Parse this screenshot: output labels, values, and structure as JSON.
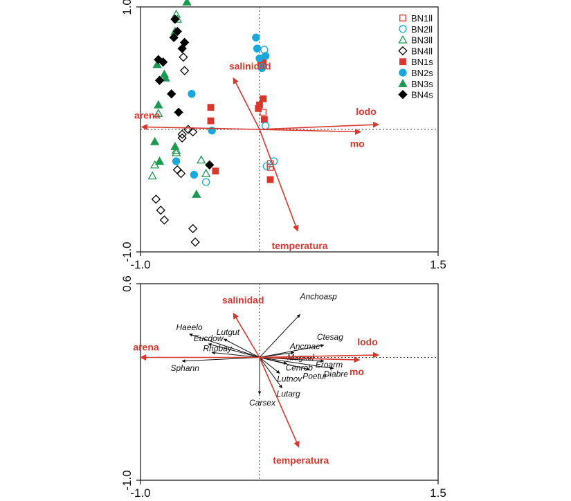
{
  "colors": {
    "red": "#d7372d",
    "cyan": "#1aa7d9",
    "green": "#1a9a50",
    "black": "#000000",
    "env_arrow": "#d7372d",
    "species_arrow": "#111111",
    "dashed": "#333333"
  },
  "chart_data": [
    {
      "type": "scatter",
      "title": "",
      "xlabel": "",
      "ylabel": "",
      "xlim": [
        -1.0,
        1.5
      ],
      "ylim": [
        -1.0,
        1.0
      ],
      "x_ticks": [
        {
          "value": -1.0,
          "label": "-1.0"
        },
        {
          "value": 1.5,
          "label": "1.5"
        }
      ],
      "y_ticks": [
        {
          "value": 1.0,
          "label": "1.0"
        },
        {
          "value": -1.0,
          "label": "-1.0"
        }
      ],
      "grid": false,
      "origin_lines": "dotted",
      "legend_position": "top-right",
      "legend": [
        {
          "name": "BN1ll",
          "marker": "square-open",
          "color": "red"
        },
        {
          "name": "BN2ll",
          "marker": "circle-open",
          "color": "cyan"
        },
        {
          "name": "BN3ll",
          "marker": "triangle-open",
          "color": "green"
        },
        {
          "name": "BN4ll",
          "marker": "diamond-open",
          "color": "black"
        },
        {
          "name": "BN1s",
          "marker": "square-filled",
          "color": "red"
        },
        {
          "name": "BN2s",
          "marker": "circle-filled",
          "color": "cyan"
        },
        {
          "name": "BN3s",
          "marker": "triangle-filled",
          "color": "green"
        },
        {
          "name": "BN4s",
          "marker": "diamond-filled",
          "color": "black"
        }
      ],
      "series": [
        {
          "name": "BN1ll",
          "marker": "square-open",
          "color": "red",
          "points": [
            [
              0.03,
              0.14
            ],
            [
              0.09,
              -0.28
            ],
            [
              0.09,
              -0.31
            ]
          ]
        },
        {
          "name": "BN1s",
          "marker": "square-filled",
          "color": "red",
          "points": [
            [
              0.03,
              0.57
            ],
            [
              0.01,
              0.55
            ],
            [
              0.03,
              0.53
            ],
            [
              0.03,
              0.25
            ],
            [
              0.0,
              0.2
            ],
            [
              -0.01,
              0.17
            ],
            [
              -0.41,
              0.18
            ],
            [
              -0.41,
              0.07
            ],
            [
              0.04,
              0.08
            ],
            [
              -0.37,
              -0.34
            ],
            [
              0.09,
              -0.41
            ]
          ]
        },
        {
          "name": "BN2ll",
          "marker": "circle-open",
          "color": "cyan",
          "points": [
            [
              0.05,
              0.03
            ],
            [
              0.12,
              -0.26
            ],
            [
              0.06,
              -0.3
            ],
            [
              -0.45,
              -0.43
            ],
            [
              0.02,
              0.51
            ],
            [
              0.04,
              0.65
            ]
          ]
        },
        {
          "name": "BN2s",
          "marker": "circle-filled",
          "color": "cyan",
          "points": [
            [
              -0.03,
              0.75
            ],
            [
              -0.02,
              0.66
            ],
            [
              0.0,
              0.58
            ],
            [
              0.05,
              0.6
            ],
            [
              0.02,
              0.5
            ],
            [
              -0.57,
              0.29
            ],
            [
              -0.55,
              -0.37
            ],
            [
              -0.7,
              -0.26
            ],
            [
              -0.4,
              -0.01
            ]
          ]
        },
        {
          "name": "BN3ll",
          "marker": "triangle-open",
          "color": "green",
          "points": [
            [
              -0.7,
              0.94
            ],
            [
              -0.69,
              0.9
            ],
            [
              -0.85,
              0.13
            ],
            [
              -0.88,
              -0.29
            ],
            [
              -0.9,
              -0.38
            ],
            [
              -0.7,
              -0.17
            ],
            [
              -0.7,
              -0.19
            ],
            [
              -0.49,
              -0.25
            ],
            [
              -0.45,
              -0.36
            ]
          ]
        },
        {
          "name": "BN3s",
          "marker": "triangle-filled",
          "color": "green",
          "points": [
            [
              -0.61,
              1.04
            ],
            [
              -0.71,
              0.8
            ],
            [
              -0.86,
              0.53
            ],
            [
              -0.8,
              0.45
            ],
            [
              -0.79,
              0.42
            ],
            [
              -0.85,
              0.2
            ],
            [
              -0.88,
              -0.1
            ],
            [
              -0.71,
              -0.14
            ],
            [
              -0.84,
              -0.26
            ],
            [
              -0.53,
              -0.53
            ]
          ]
        },
        {
          "name": "BN4ll",
          "marker": "diamond-open",
          "color": "black",
          "points": [
            [
              -0.64,
              0.59
            ],
            [
              -0.63,
              0.48
            ],
            [
              -0.6,
              0.0
            ],
            [
              -0.56,
              -0.02
            ],
            [
              -0.65,
              -0.04
            ],
            [
              -0.65,
              -0.07
            ],
            [
              -0.69,
              -0.33
            ],
            [
              -0.66,
              -0.36
            ],
            [
              -0.87,
              -0.57
            ],
            [
              -0.83,
              -0.66
            ],
            [
              -0.8,
              -0.74
            ],
            [
              -0.56,
              -0.81
            ],
            [
              -0.54,
              -0.92
            ]
          ]
        },
        {
          "name": "BN4s",
          "marker": "diamond-filled",
          "color": "black",
          "points": [
            [
              -0.71,
              0.9
            ],
            [
              -0.69,
              0.8
            ],
            [
              -0.72,
              0.75
            ],
            [
              -0.65,
              0.66
            ],
            [
              -0.63,
              0.71
            ],
            [
              -0.85,
              0.57
            ],
            [
              -0.81,
              0.55
            ],
            [
              -0.84,
              0.4
            ],
            [
              -0.74,
              0.29
            ],
            [
              -0.68,
              0.14
            ],
            [
              -0.42,
              -0.29
            ]
          ]
        }
      ],
      "arrows": [
        {
          "label": "arena",
          "x": -0.99,
          "y": 0.02
        },
        {
          "label": "lodo",
          "x": 1.0,
          "y": 0.04
        },
        {
          "label": "mo",
          "x": 0.85,
          "y": -0.02
        },
        {
          "label": "salinidad",
          "x": -0.22,
          "y": 0.42
        },
        {
          "label": "temperatura",
          "x": 0.32,
          "y": -0.83
        }
      ]
    },
    {
      "type": "scatter",
      "title": "",
      "xlabel": "",
      "ylabel": "",
      "xlim": [
        -1.0,
        1.5
      ],
      "ylim": [
        -1.0,
        0.6
      ],
      "x_ticks": [
        {
          "value": -1.0,
          "label": "-1.0"
        },
        {
          "value": 1.5,
          "label": "1.5"
        }
      ],
      "y_ticks": [
        {
          "value": 0.6,
          "label": "0.6"
        },
        {
          "value": -1.0,
          "label": "-1.0"
        }
      ],
      "grid": false,
      "origin_lines": "dotted",
      "env_arrows": [
        {
          "label": "arena",
          "x": -1.0,
          "y": 0.0
        },
        {
          "label": "lodo",
          "x": 1.0,
          "y": 0.02
        },
        {
          "label": "mo",
          "x": 0.84,
          "y": -0.02
        },
        {
          "label": "salinidad",
          "x": -0.22,
          "y": 0.36
        },
        {
          "label": "temperatura",
          "x": 0.33,
          "y": -0.73
        }
      ],
      "species": [
        {
          "label": "Anchoasp",
          "x": 0.34,
          "y": 0.35
        },
        {
          "label": "Ctesag",
          "x": 0.54,
          "y": 0.1
        },
        {
          "label": "Ancmac",
          "x": 0.29,
          "y": 0.04
        },
        {
          "label": "Mugsel",
          "x": 0.29,
          "y": -0.01
        },
        {
          "label": "Eroarm",
          "x": 0.54,
          "y": -0.03
        },
        {
          "label": "Cenrob",
          "x": 0.23,
          "y": -0.05
        },
        {
          "label": "Diabre",
          "x": 0.62,
          "y": -0.09
        },
        {
          "label": "Poetur",
          "x": 0.42,
          "y": -0.1
        },
        {
          "label": "Lutnov",
          "x": 0.17,
          "y": -0.13
        },
        {
          "label": "Lutarg",
          "x": 0.19,
          "y": -0.25
        },
        {
          "label": "Carsex",
          "x": 0.0,
          "y": -0.3
        },
        {
          "label": "Haeelo",
          "x": -0.59,
          "y": 0.19
        },
        {
          "label": "Lutgut",
          "x": -0.3,
          "y": 0.15
        },
        {
          "label": "Eucdow",
          "x": -0.43,
          "y": 0.11
        },
        {
          "label": "Rhobay",
          "x": -0.4,
          "y": 0.04
        },
        {
          "label": "Sphann",
          "x": -0.65,
          "y": -0.03
        }
      ]
    }
  ]
}
